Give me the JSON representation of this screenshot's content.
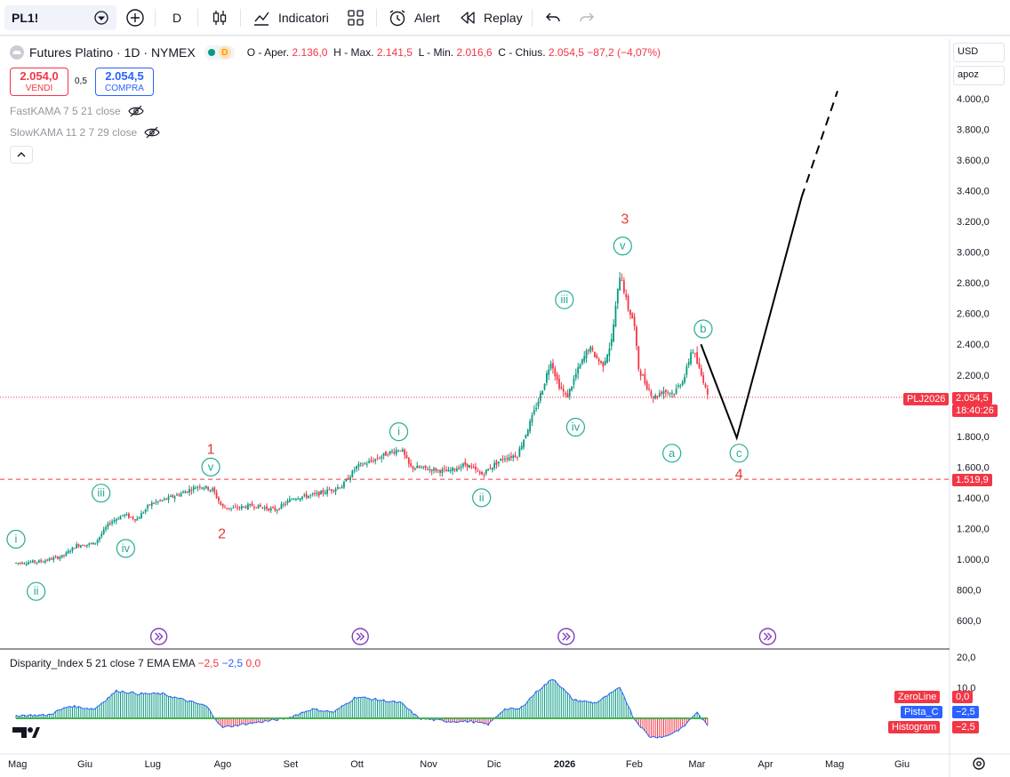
{
  "toolbar": {
    "symbol": "PL1!",
    "interval": "D",
    "indicators_label": "Indicatori",
    "alert_label": "Alert",
    "replay_label": "Replay"
  },
  "legend": {
    "name": "Futures Platino · 1D · NYMEX",
    "badge": "D",
    "open_label": "O - Aper.",
    "open": "2.136,0",
    "high_label": "H - Max.",
    "high": "2.141,5",
    "low_label": "L - Min.",
    "low": "2.016,6",
    "close_label": "C - Chius.",
    "close": "2.054,5",
    "change": "−87,2 (−4,07%)"
  },
  "trade": {
    "sell_price": "2.054,0",
    "sell_label": "VENDI",
    "spread": "0,5",
    "buy_price": "2.054,5",
    "buy_label": "COMPRA"
  },
  "indicators": {
    "fast": "FastKAMA 7 5 21 close",
    "slow": "SlowKAMA 11 2 7 29 close"
  },
  "price_scale": {
    "currency": "USD",
    "mode": "apoz",
    "current_symbol": "PLJ2026",
    "current_price": "2.054,5",
    "countdown": "18:40:26",
    "level_label": "1.519,9"
  },
  "oscillator": {
    "title": "Disparity_Index 5 21 close 7 EMA EMA",
    "val1": "−2,5",
    "val2": "−2,5",
    "val3": "0,0",
    "tags": [
      {
        "name": "ZeroLine",
        "value": "0,0",
        "color": "#f23645"
      },
      {
        "name": "Pista_C",
        "value": "−2,5",
        "color": "#2962ff"
      },
      {
        "name": "Histogram",
        "value": "−2,5",
        "color": "#f23645"
      }
    ],
    "ticks": [
      "20,0",
      "10,0"
    ]
  },
  "colors": {
    "up": "#089981",
    "down": "#f23645",
    "wave": "#22ab94",
    "major": "#e53935",
    "line": "#000000"
  },
  "chart_data": {
    "type": "candlestick",
    "y_ticks": [
      600,
      800,
      1000,
      1200,
      1400,
      1600,
      1800,
      2000,
      2200,
      2400,
      2600,
      2800,
      3000,
      3200,
      3400,
      3600,
      3800,
      4000
    ],
    "y_tick_labels": [
      "600,0",
      "800,0",
      "1.000,0",
      "1.200,0",
      "1.400,0",
      "1.600,0",
      "1.800,0",
      "2.000,0",
      "2.200,0",
      "2.400,0",
      "2.600,0",
      "2.800,0",
      "3.000,0",
      "3.200,0",
      "3.400,0",
      "3.600,0",
      "3.800,0",
      "4.000,0"
    ],
    "x_labels": [
      {
        "label": "Mag",
        "date": "2025-05-01"
      },
      {
        "label": "Giu",
        "date": "2025-06-01"
      },
      {
        "label": "Lug",
        "date": "2025-07-01"
      },
      {
        "label": "Ago",
        "date": "2025-08-01"
      },
      {
        "label": "Set",
        "date": "2025-09-01"
      },
      {
        "label": "Ott",
        "date": "2025-10-01"
      },
      {
        "label": "Nov",
        "date": "2025-11-01"
      },
      {
        "label": "Dic",
        "date": "2025-12-01"
      },
      {
        "label": "2026",
        "date": "2026-01-01"
      },
      {
        "label": "Feb",
        "date": "2026-02-01"
      },
      {
        "label": "Mar",
        "date": "2026-03-01"
      },
      {
        "label": "Apr",
        "date": "2026-04-01"
      },
      {
        "label": "Mag",
        "date": "2026-05-01"
      },
      {
        "label": "Giu",
        "date": "2026-06-01"
      }
    ],
    "price_path": [
      [
        "2025-05-01",
        975
      ],
      [
        "2025-05-12",
        985
      ],
      [
        "2025-05-22",
        1020
      ],
      [
        "2025-05-28",
        1090
      ],
      [
        "2025-06-05",
        1100
      ],
      [
        "2025-06-12",
        1240
      ],
      [
        "2025-06-18",
        1290
      ],
      [
        "2025-06-24",
        1260
      ],
      [
        "2025-06-30",
        1360
      ],
      [
        "2025-07-07",
        1390
      ],
      [
        "2025-07-14",
        1430
      ],
      [
        "2025-07-22",
        1480
      ],
      [
        "2025-07-28",
        1450
      ],
      [
        "2025-08-01",
        1340
      ],
      [
        "2025-08-06",
        1330
      ],
      [
        "2025-08-15",
        1350
      ],
      [
        "2025-08-25",
        1320
      ],
      [
        "2025-09-02",
        1400
      ],
      [
        "2025-09-12",
        1420
      ],
      [
        "2025-09-24",
        1480
      ],
      [
        "2025-09-30",
        1600
      ],
      [
        "2025-10-07",
        1640
      ],
      [
        "2025-10-14",
        1690
      ],
      [
        "2025-10-20",
        1720
      ],
      [
        "2025-10-24",
        1600
      ],
      [
        "2025-10-31",
        1590
      ],
      [
        "2025-11-10",
        1570
      ],
      [
        "2025-11-18",
        1620
      ],
      [
        "2025-11-25",
        1550
      ],
      [
        "2025-12-01",
        1620
      ],
      [
        "2025-12-05",
        1660
      ],
      [
        "2025-12-11",
        1680
      ],
      [
        "2025-12-17",
        1900
      ],
      [
        "2025-12-22",
        2100
      ],
      [
        "2025-12-26",
        2300
      ],
      [
        "2025-12-29",
        2150
      ],
      [
        "2026-01-02",
        2050
      ],
      [
        "2026-01-06",
        2200
      ],
      [
        "2026-01-12",
        2380
      ],
      [
        "2026-01-18",
        2260
      ],
      [
        "2026-01-22",
        2420
      ],
      [
        "2026-01-26",
        2880
      ],
      [
        "2026-01-29",
        2650
      ],
      [
        "2026-02-01",
        2550
      ],
      [
        "2026-02-03",
        2250
      ],
      [
        "2026-02-06",
        2150
      ],
      [
        "2026-02-10",
        2050
      ],
      [
        "2026-02-14",
        2100
      ],
      [
        "2026-02-19",
        2080
      ],
      [
        "2026-02-24",
        2200
      ],
      [
        "2026-02-27",
        2380
      ],
      [
        "2026-03-03",
        2200
      ],
      [
        "2026-03-05",
        2136
      ],
      [
        "2026-03-06",
        2054
      ]
    ],
    "current_price": 2054.5,
    "support_level": 1519.9,
    "projection": [
      [
        "2026-03-03",
        2400
      ],
      [
        "2026-03-19",
        1790
      ],
      [
        "2026-04-17",
        3360
      ]
    ],
    "projection_dashed": [
      [
        "2026-04-17",
        3360
      ],
      [
        "2026-05-03",
        4050
      ]
    ],
    "wave_labels": [
      {
        "text": "i",
        "date": "2025-05-01",
        "price": 1130,
        "style": "minor"
      },
      {
        "text": "ii",
        "date": "2025-05-10",
        "price": 790,
        "style": "minor"
      },
      {
        "text": "iii",
        "date": "2025-06-08",
        "price": 1430,
        "style": "minor"
      },
      {
        "text": "iv",
        "date": "2025-06-19",
        "price": 1070,
        "style": "minor"
      },
      {
        "text": "v",
        "date": "2025-07-27",
        "price": 1600,
        "style": "minor"
      },
      {
        "text": "1",
        "date": "2025-07-27",
        "price": 1720,
        "style": "major"
      },
      {
        "text": "2",
        "date": "2025-08-01",
        "price": 1170,
        "style": "major"
      },
      {
        "text": "i",
        "date": "2025-10-19",
        "price": 1830,
        "style": "minor"
      },
      {
        "text": "ii",
        "date": "2025-11-25",
        "price": 1400,
        "style": "minor"
      },
      {
        "text": "iii",
        "date": "2026-01-01",
        "price": 2690,
        "style": "minor"
      },
      {
        "text": "iv",
        "date": "2026-01-06",
        "price": 1860,
        "style": "minor"
      },
      {
        "text": "v",
        "date": "2026-01-27",
        "price": 3040,
        "style": "minor"
      },
      {
        "text": "3",
        "date": "2026-01-28",
        "price": 3220,
        "style": "major"
      },
      {
        "text": "a",
        "date": "2026-02-18",
        "price": 1690,
        "style": "minor"
      },
      {
        "text": "b",
        "date": "2026-03-04",
        "price": 2500,
        "style": "minor"
      },
      {
        "text": "c",
        "date": "2026-03-20",
        "price": 1690,
        "style": "minor"
      },
      {
        "text": "4",
        "date": "2026-03-20",
        "price": 1560,
        "style": "major"
      }
    ],
    "oscillator_path": [
      [
        "2025-05-01",
        1
      ],
      [
        "2025-05-15",
        1
      ],
      [
        "2025-05-25",
        4
      ],
      [
        "2025-06-05",
        3
      ],
      [
        "2025-06-15",
        9
      ],
      [
        "2025-06-25",
        8
      ],
      [
        "2025-07-05",
        8
      ],
      [
        "2025-07-15",
        6
      ],
      [
        "2025-07-25",
        4
      ],
      [
        "2025-08-01",
        -3
      ],
      [
        "2025-08-10",
        -2
      ],
      [
        "2025-08-20",
        -1
      ],
      [
        "2025-08-30",
        0
      ],
      [
        "2025-09-10",
        3
      ],
      [
        "2025-09-20",
        2
      ],
      [
        "2025-09-30",
        7
      ],
      [
        "2025-10-10",
        6
      ],
      [
        "2025-10-20",
        5
      ],
      [
        "2025-10-28",
        0
      ],
      [
        "2025-11-10",
        -1
      ],
      [
        "2025-11-20",
        -1
      ],
      [
        "2025-11-28",
        -2
      ],
      [
        "2025-12-05",
        3
      ],
      [
        "2025-12-12",
        3
      ],
      [
        "2025-12-20",
        9
      ],
      [
        "2025-12-27",
        13
      ],
      [
        "2026-01-05",
        6
      ],
      [
        "2026-01-15",
        5
      ],
      [
        "2026-01-26",
        10
      ],
      [
        "2026-02-01",
        0
      ],
      [
        "2026-02-08",
        -6
      ],
      [
        "2026-02-15",
        -6
      ],
      [
        "2026-02-23",
        -3
      ],
      [
        "2026-03-01",
        2
      ],
      [
        "2026-03-06",
        -2.5
      ]
    ],
    "osc_range": [
      -8,
      20
    ]
  }
}
